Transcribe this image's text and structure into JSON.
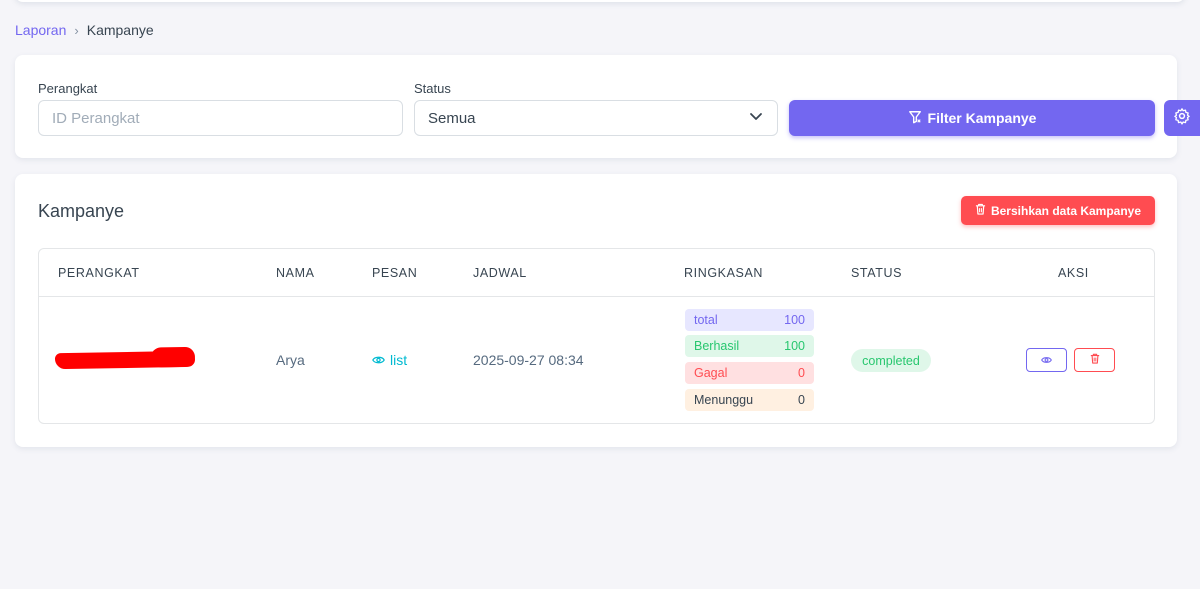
{
  "breadcrumb": {
    "parent": "Laporan",
    "separator": "›",
    "current": "Kampanye"
  },
  "filters": {
    "device_label": "Perangkat",
    "device_placeholder": "ID Perangkat",
    "device_value": "",
    "status_label": "Status",
    "status_value": "Semua",
    "filter_button": "Filter Kampanye",
    "settings_icon": "gear-icon"
  },
  "campaigns": {
    "title": "Kampanye",
    "clear_button": "Bersihkan data Kampanye",
    "columns": {
      "device": "PERANGKAT",
      "name": "NAMA",
      "message": "PESAN",
      "schedule": "JADWAL",
      "summary": "RINGKASAN",
      "status": "STATUS",
      "actions": "AKSI"
    },
    "rows": [
      {
        "device": "[redacted]",
        "name": "Arya",
        "message_link": "list",
        "schedule": "2025-09-27 08:34",
        "summary": {
          "total_label": "total",
          "total": "100",
          "success_label": "Berhasil",
          "success": "100",
          "failed_label": "Gagal",
          "failed": "0",
          "pending_label": "Menunggu",
          "pending": "0"
        },
        "status": "completed"
      }
    ]
  },
  "colors": {
    "primary": "#7367f0",
    "danger": "#ff4c51",
    "success": "#28c76f",
    "info": "#00bad1",
    "background": "#f5f5f9"
  }
}
